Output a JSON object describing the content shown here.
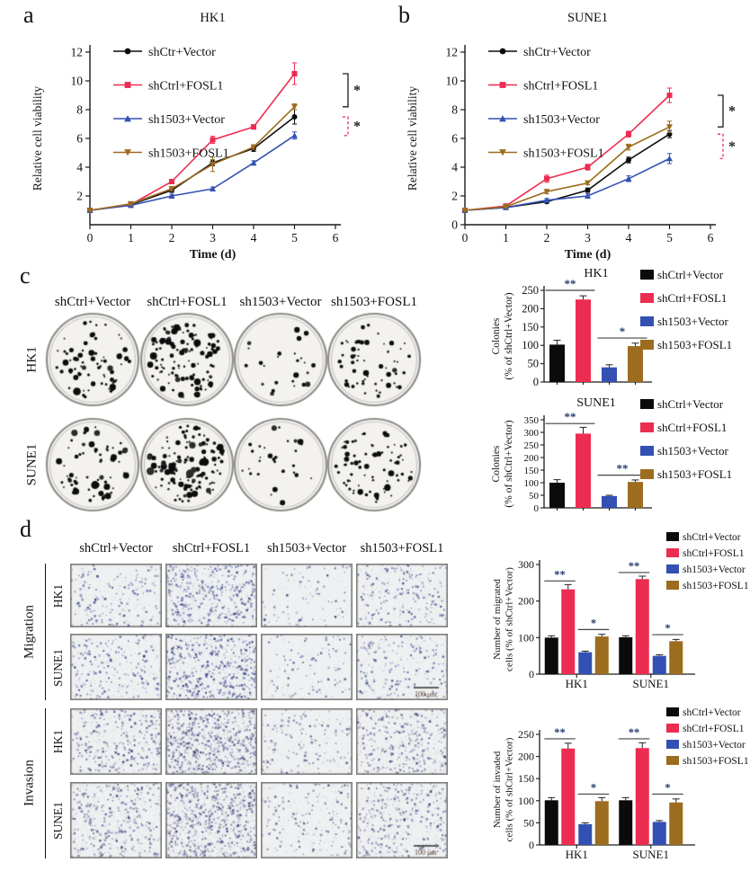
{
  "colors": {
    "black": "#0b0b0b",
    "red": "#ec2c50",
    "blue": "#3350b2",
    "brown": "#9c6c1f",
    "axis": "#1a1a1a"
  },
  "bar_color_order": [
    "black",
    "red",
    "blue",
    "brown"
  ],
  "panels": {
    "a": {
      "label": "a"
    },
    "b": {
      "label": "b"
    },
    "c": {
      "label": "c",
      "columns": [
        "shCtrl+Vector",
        "shCtrl+FOSL1",
        "sh1503+Vector",
        "sh1503+FOSL1"
      ],
      "rows": [
        "HK1",
        "SUNE1"
      ]
    },
    "d": {
      "label": "d",
      "columns": [
        "shCtrl+Vector",
        "shCtrl+FOSL1",
        "sh1503+Vector",
        "sh1503+FOSL1"
      ],
      "groups": [
        {
          "label": "Migration",
          "rows": [
            "HK1",
            "SUNE1"
          ]
        },
        {
          "label": "Invasion",
          "rows": [
            "HK1",
            "SUNE1"
          ]
        }
      ],
      "scale_bar_label": "100 μm"
    }
  },
  "chart_data": [
    {
      "id": "a",
      "type": "line",
      "title": "HK1",
      "xlabel": "Time (d)",
      "ylabel": "Relative cell viability",
      "x": [
        0,
        1,
        2,
        3,
        4,
        5
      ],
      "xticks": [
        0,
        1,
        2,
        3,
        4,
        5,
        6
      ],
      "yticks": [
        2,
        4,
        6,
        8,
        10,
        12
      ],
      "xlim": [
        0,
        6
      ],
      "ylim": [
        0,
        12
      ],
      "series": [
        {
          "name": "shCtr+Vector",
          "color": "black",
          "marker": "circle",
          "values": [
            1.0,
            1.4,
            2.4,
            4.3,
            5.3,
            7.5
          ],
          "errors": [
            0.05,
            0.08,
            0.15,
            0.2,
            0.2,
            0.5
          ]
        },
        {
          "name": "shCtrl+FOSL1",
          "color": "red",
          "marker": "square",
          "values": [
            1.0,
            1.4,
            3.0,
            5.9,
            6.8,
            10.5
          ],
          "errors": [
            0.05,
            0.08,
            0.15,
            0.25,
            0.15,
            0.75
          ]
        },
        {
          "name": "sh1503+Vector",
          "color": "blue",
          "marker": "triangle-up",
          "values": [
            1.0,
            1.35,
            2.0,
            2.5,
            4.3,
            6.2
          ],
          "errors": [
            0.05,
            0.08,
            0.12,
            0.12,
            0.15,
            0.25
          ]
        },
        {
          "name": "sh1503+FOSL1",
          "color": "brown",
          "marker": "triangle-down",
          "values": [
            1.0,
            1.45,
            2.5,
            4.2,
            5.4,
            8.2
          ],
          "errors": [
            0.05,
            0.1,
            0.15,
            0.5,
            0.15,
            0.2
          ]
        }
      ],
      "significance": [
        {
          "style": "solid",
          "color": "black",
          "from_series": 1,
          "to_series": 3,
          "label": "*"
        },
        {
          "style": "dashed",
          "color": "red",
          "from_series": 0,
          "to_series": 2,
          "label": "*"
        }
      ]
    },
    {
      "id": "b",
      "type": "line",
      "title": "SUNE1",
      "xlabel": "Time (d)",
      "ylabel": "Relative cell viability",
      "x": [
        0,
        1,
        2,
        3,
        4,
        5
      ],
      "xticks": [
        0,
        1,
        2,
        3,
        4,
        5,
        6
      ],
      "yticks": [
        0,
        2,
        4,
        6,
        8,
        10,
        12
      ],
      "xlim": [
        0,
        6
      ],
      "ylim": [
        0,
        12
      ],
      "series": [
        {
          "name": "shCtr+Vector",
          "color": "black",
          "marker": "circle",
          "values": [
            1.0,
            1.2,
            1.6,
            2.4,
            4.5,
            6.3
          ],
          "errors": [
            0.05,
            0.08,
            0.1,
            0.15,
            0.2,
            0.25
          ]
        },
        {
          "name": "shCtrl+FOSL1",
          "color": "red",
          "marker": "square",
          "values": [
            1.0,
            1.3,
            3.2,
            4.0,
            6.3,
            9.0
          ],
          "errors": [
            0.05,
            0.08,
            0.25,
            0.2,
            0.2,
            0.5
          ]
        },
        {
          "name": "sh1503+Vector",
          "color": "blue",
          "marker": "triangle-up",
          "values": [
            1.0,
            1.2,
            1.7,
            2.0,
            3.2,
            4.6
          ],
          "errors": [
            0.05,
            0.08,
            0.12,
            0.15,
            0.2,
            0.35
          ]
        },
        {
          "name": "sh1503+FOSL1",
          "color": "brown",
          "marker": "triangle-down",
          "values": [
            1.0,
            1.25,
            2.3,
            2.9,
            5.4,
            6.8
          ],
          "errors": [
            0.05,
            0.08,
            0.15,
            0.12,
            0.2,
            0.4
          ]
        }
      ],
      "significance": [
        {
          "style": "solid",
          "color": "black",
          "from_series": 1,
          "to_series": 3,
          "label": "*"
        },
        {
          "style": "dashed",
          "color": "red",
          "from_series": 0,
          "to_series": 2,
          "label": "*"
        }
      ]
    },
    {
      "id": "c_hk1",
      "type": "bar",
      "title": "HK1",
      "ylabel_lines": [
        "Colonies",
        "(% of shCtrl+Vector)"
      ],
      "yticks": [
        0,
        50,
        100,
        150,
        200,
        250
      ],
      "categories": [
        "shCtrl+Vector",
        "shCtrl+FOSL1",
        "sh1503+Vector",
        "sh1503+FOSL1"
      ],
      "values": [
        102,
        225,
        40,
        98
      ],
      "errors": [
        12,
        10,
        7,
        8
      ],
      "legend": [
        "shCtrl+Vector",
        "shCtrl+FOSL1",
        "sh1503+Vector",
        "sh1503+FOSL1"
      ],
      "significance": [
        {
          "pair": [
            0,
            1
          ],
          "label": "**",
          "y": 250
        },
        {
          "pair": [
            2,
            3
          ],
          "label": "*",
          "y": 120
        }
      ]
    },
    {
      "id": "c_sune1",
      "type": "bar",
      "title": "SUNE1",
      "ylabel_lines": [
        "Colonies",
        "(% of shCtrl+Vector)"
      ],
      "yticks": [
        0,
        50,
        100,
        150,
        200,
        250,
        300,
        350
      ],
      "categories": [
        "shCtrl+Vector",
        "shCtrl+FOSL1",
        "sh1503+Vector",
        "sh1503+FOSL1"
      ],
      "values": [
        100,
        295,
        47,
        103
      ],
      "errors": [
        12,
        25,
        3,
        8
      ],
      "legend": [
        "shCtrl+Vector",
        "shCtrl+FOSL1",
        "sh1503+Vector",
        "sh1503+FOSL1"
      ],
      "significance": [
        {
          "pair": [
            0,
            1
          ],
          "label": "**",
          "y": 335
        },
        {
          "pair": [
            2,
            3
          ],
          "label": "**",
          "y": 130
        }
      ]
    },
    {
      "id": "d_migration",
      "type": "grouped-bar",
      "ylabel_lines": [
        "Number of migrated",
        "cells (% of shCtrl+Vector)"
      ],
      "groups": [
        "HK1",
        "SUNE1"
      ],
      "yticks": [
        0,
        100,
        200,
        300
      ],
      "series": [
        {
          "name": "shCtrl+Vector",
          "color": "black",
          "values": [
            100,
            101
          ],
          "errors": [
            5,
            4
          ]
        },
        {
          "name": "shCtrl+FOSL1",
          "color": "red",
          "values": [
            232,
            260
          ],
          "errors": [
            13,
            8
          ]
        },
        {
          "name": "sh1503+Vector",
          "color": "blue",
          "values": [
            60,
            50
          ],
          "errors": [
            3,
            3
          ]
        },
        {
          "name": "sh1503+FOSL1",
          "color": "brown",
          "values": [
            103,
            90
          ],
          "errors": [
            6,
            5
          ]
        }
      ],
      "significance": [
        {
          "group": 0,
          "pair": [
            0,
            1
          ],
          "label": "**",
          "y": 255
        },
        {
          "group": 0,
          "pair": [
            2,
            3
          ],
          "label": "*",
          "y": 122
        },
        {
          "group": 1,
          "pair": [
            0,
            1
          ],
          "label": "**",
          "y": 278
        },
        {
          "group": 1,
          "pair": [
            2,
            3
          ],
          "label": "*",
          "y": 108
        }
      ]
    },
    {
      "id": "d_invasion",
      "type": "grouped-bar",
      "ylabel_lines": [
        "Number of invaded",
        "cells (% of shCtrl+Vector)"
      ],
      "groups": [
        "HK1",
        "SUNE1"
      ],
      "yticks": [
        0,
        50,
        100,
        150,
        200,
        250
      ],
      "series": [
        {
          "name": "shCtrl+Vector",
          "color": "black",
          "values": [
            101,
            101
          ],
          "errors": [
            6,
            6
          ]
        },
        {
          "name": "shCtrl+FOSL1",
          "color": "red",
          "values": [
            218,
            219
          ],
          "errors": [
            12,
            12
          ]
        },
        {
          "name": "sh1503+Vector",
          "color": "blue",
          "values": [
            47,
            52
          ],
          "errors": [
            3,
            3
          ]
        },
        {
          "name": "sh1503+FOSL1",
          "color": "brown",
          "values": [
            99,
            96
          ],
          "errors": [
            8,
            8
          ]
        }
      ],
      "significance": [
        {
          "group": 0,
          "pair": [
            0,
            1
          ],
          "label": "**",
          "y": 240
        },
        {
          "group": 0,
          "pair": [
            2,
            3
          ],
          "label": "*",
          "y": 115
        },
        {
          "group": 1,
          "pair": [
            0,
            1
          ],
          "label": "**",
          "y": 240
        },
        {
          "group": 1,
          "pair": [
            2,
            3
          ],
          "label": "*",
          "y": 115
        }
      ]
    }
  ],
  "figure_assets": {
    "colony_density": {
      "HK1": [
        70,
        120,
        25,
        60
      ],
      "SUNE1": [
        70,
        130,
        30,
        75
      ]
    },
    "cell_density": {
      "Migration": {
        "HK1": [
          170,
          380,
          80,
          200
        ],
        "SUNE1": [
          200,
          420,
          100,
          180
        ]
      },
      "Invasion": {
        "HK1": [
          300,
          560,
          150,
          300
        ],
        "SUNE1": [
          340,
          620,
          170,
          330
        ]
      }
    }
  }
}
